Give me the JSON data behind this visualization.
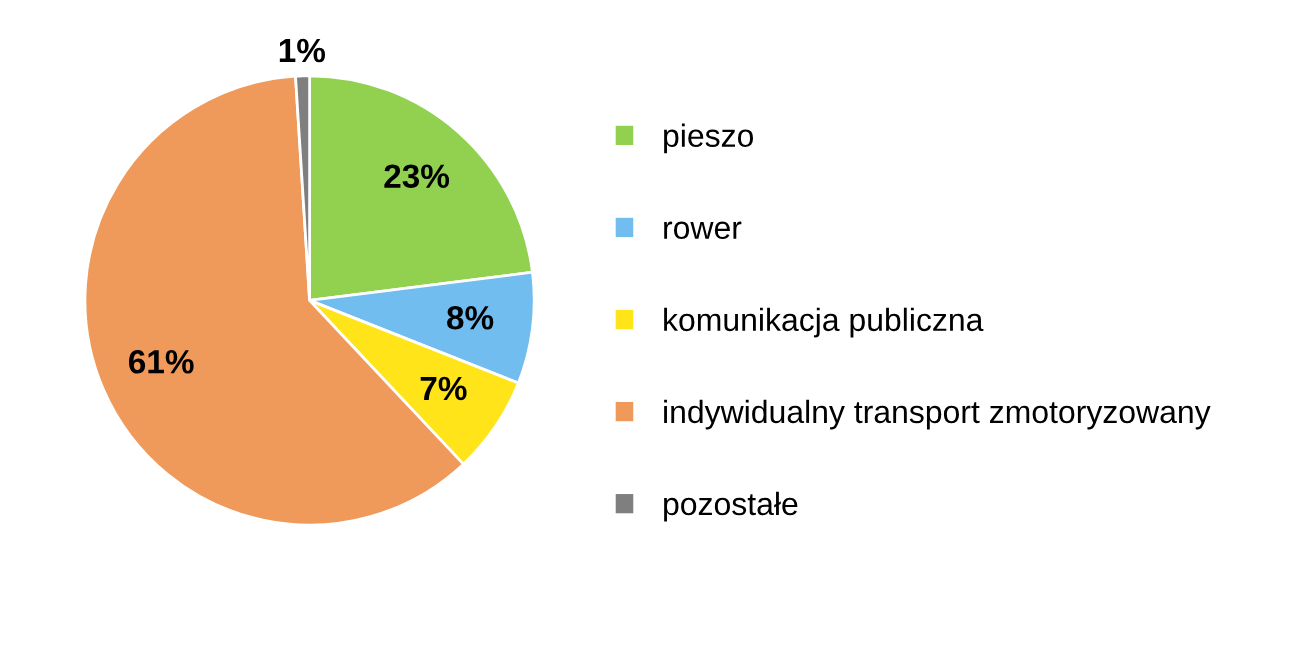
{
  "chart_data": {
    "type": "pie",
    "categories": [
      "pieszo",
      "rower",
      "komunikacja publiczna",
      "indywidualny transport zmotoryzowany",
      "pozostałe"
    ],
    "values": [
      23,
      8,
      7,
      61,
      1
    ],
    "value_labels": [
      "23%",
      "8%",
      "7%",
      "61%",
      "1%"
    ],
    "colors": [
      "#92d050",
      "#71bdf0",
      "#ffe41a",
      "#ef995a",
      "#7f7f7f"
    ],
    "legend": "right"
  }
}
